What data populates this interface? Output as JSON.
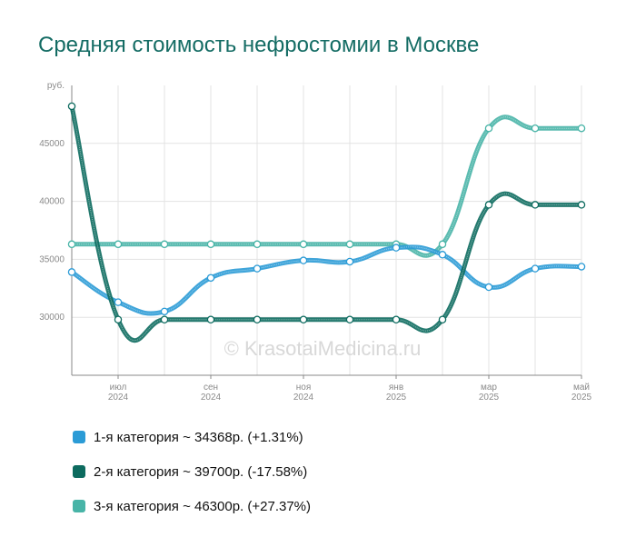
{
  "chart_data": {
    "type": "line",
    "title": "Средняя стоимость нефростомии в Москве",
    "ylabel": "руб.",
    "ylim": [
      25000,
      50000
    ],
    "yticks": [
      30000,
      35000,
      40000,
      45000
    ],
    "ytick_labels": [
      "30000",
      "35000",
      "40000",
      "45000"
    ],
    "x": [
      "2024-06",
      "2024-07",
      "2024-08",
      "2024-09",
      "2024-10",
      "2024-11",
      "2024-12",
      "2025-01",
      "2025-02",
      "2025-03",
      "2025-04",
      "2025-05"
    ],
    "xtick_labels": [
      {
        "index": 1,
        "month": "июл",
        "year": "2024"
      },
      {
        "index": 3,
        "month": "сен",
        "year": "2024"
      },
      {
        "index": 5,
        "month": "ноя",
        "year": "2024"
      },
      {
        "index": 7,
        "month": "янв",
        "year": "2025"
      },
      {
        "index": 9,
        "month": "мар",
        "year": "2025"
      },
      {
        "index": 11,
        "month": "май",
        "year": "2025"
      }
    ],
    "grid": true,
    "watermark": "© KrasotaiMedicina.ru",
    "series": [
      {
        "name": "1-я категория",
        "color": "#2b9bd6",
        "values": [
          33900,
          31300,
          30500,
          33400,
          34200,
          34900,
          34800,
          36000,
          35400,
          32600,
          34200,
          34368
        ]
      },
      {
        "name": "2-я категория",
        "color": "#0d6b5f",
        "values": [
          48200,
          29800,
          29800,
          29800,
          29800,
          29800,
          29800,
          29800,
          29800,
          39700,
          39700,
          39700
        ]
      },
      {
        "name": "3-я категория",
        "color": "#48b4a7",
        "values": [
          36300,
          36300,
          36300,
          36300,
          36300,
          36300,
          36300,
          36300,
          36300,
          46300,
          46300,
          46300
        ]
      }
    ]
  },
  "legend": [
    {
      "text": "1-я категория ~ 34368р. (+1.31%)",
      "color": "#2b9bd6"
    },
    {
      "text": "2-я категория ~ 39700р. (-17.58%)",
      "color": "#0d6b5f"
    },
    {
      "text": "3-я категория ~ 46300р. (+27.37%)",
      "color": "#48b4a7"
    }
  ]
}
